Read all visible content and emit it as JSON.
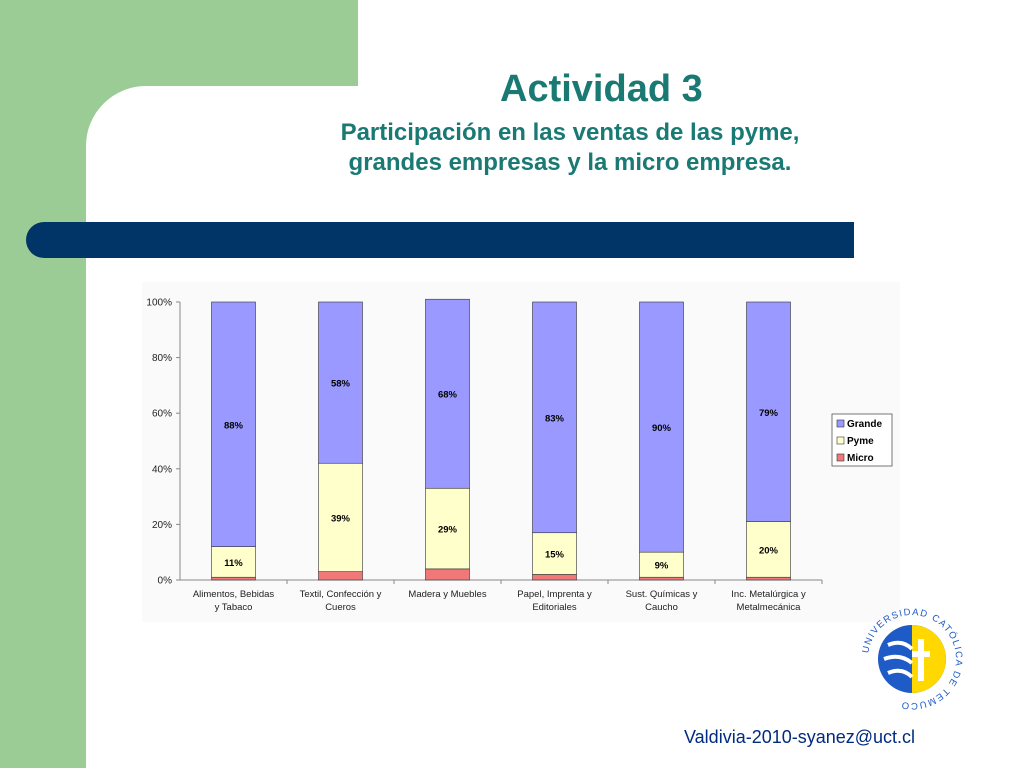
{
  "header": {
    "title": "Actividad 3",
    "subtitle_line1": "Participación en las ventas de las pyme,",
    "subtitle_line2": "grandes empresas y la micro empresa."
  },
  "footer": {
    "text": "Valdivia-2010-syanez@uct.cl"
  },
  "logo": {
    "ring_text": "UNIVERSIDAD CATÓLICA DE TEMUCO"
  },
  "colors": {
    "green": "#9ccc95",
    "navy": "#013567",
    "teal": "#1a7a73",
    "grande": "#9999ff",
    "pyme": "#ffffcc",
    "micro": "#f07878"
  },
  "chart_data": {
    "type": "bar",
    "stacked": true,
    "categories": [
      [
        "Alimentos, Bebidas",
        "y Tabaco"
      ],
      [
        "Textil, Confección y",
        "Cueros"
      ],
      [
        "Madera y Muebles"
      ],
      [
        "Papel, Imprenta y",
        "Editoriales"
      ],
      [
        "Sust. Químicas y",
        "Caucho"
      ],
      [
        "Inc. Metalúrgica y",
        "Metalmecánica"
      ]
    ],
    "series": [
      {
        "name": "Micro",
        "values": [
          1,
          3,
          4,
          2,
          1,
          1
        ]
      },
      {
        "name": "Pyme",
        "values": [
          11,
          39,
          29,
          15,
          9,
          20
        ]
      },
      {
        "name": "Grande",
        "values": [
          88,
          58,
          68,
          83,
          90,
          79
        ]
      }
    ],
    "data_labels": {
      "Grande": [
        "88%",
        "58%",
        "68%",
        "83%",
        "90%",
        "79%"
      ],
      "Pyme": [
        "11%",
        "39%",
        "29%",
        "15%",
        "9%",
        "20%"
      ]
    },
    "ylim": [
      0,
      100
    ],
    "yticks": [
      "0%",
      "20%",
      "40%",
      "60%",
      "80%",
      "100%"
    ],
    "legend": {
      "position": "right",
      "entries": [
        "Grande",
        "Pyme",
        "Micro"
      ]
    },
    "grid": false
  }
}
